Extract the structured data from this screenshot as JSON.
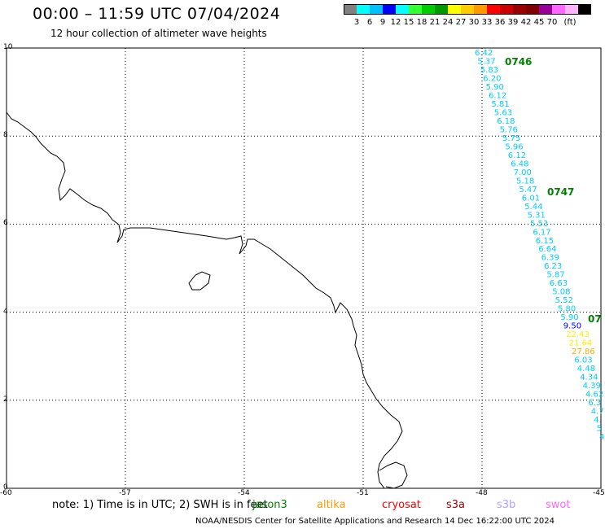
{
  "header": {
    "title": "00:00 – 11:59 UTC 07/04/2024",
    "subtitle": "12 hour collection of altimeter wave heights"
  },
  "legend": {
    "colors": [
      "#808080",
      "#00ffff",
      "#00bfff",
      "#0000ff",
      "#00ffff",
      "#33ff33",
      "#00cc00",
      "#009900",
      "#ffff00",
      "#ffcc00",
      "#ff9900",
      "#ff0000",
      "#cc0000",
      "#990000",
      "#800000",
      "#990099",
      "#ff66ff",
      "#ffb3ff",
      "#000000"
    ],
    "labels": [
      "3",
      "6",
      "9",
      "12",
      "15",
      "18",
      "21",
      "24",
      "27",
      "30",
      "33",
      "36",
      "39",
      "42",
      "45",
      "70",
      "(ft)"
    ]
  },
  "map": {
    "lon_range": [
      -60,
      -45
    ],
    "lat_range": [
      0,
      10
    ],
    "x_ticks": [
      "-60",
      "-57",
      "-54",
      "-51",
      "-48",
      "-45"
    ],
    "y_ticks": [
      "0",
      "2",
      "4",
      "6",
      "8",
      "10"
    ],
    "grid": true
  },
  "pass_labels": [
    {
      "text": "0746",
      "color": "#008000"
    },
    {
      "text": "0747",
      "color": "#008000"
    },
    {
      "text": "07",
      "color": "#008000"
    }
  ],
  "wave_heights": [
    {
      "v": "6.42",
      "c": "#00ccff"
    },
    {
      "v": "5.37",
      "c": "#00ccff"
    },
    {
      "v": "5.83",
      "c": "#00ccff"
    },
    {
      "v": "6.20",
      "c": "#00ccff"
    },
    {
      "v": "5.90",
      "c": "#00ccff"
    },
    {
      "v": "6.12",
      "c": "#00ccff"
    },
    {
      "v": "5.81",
      "c": "#00ccff"
    },
    {
      "v": "5.63",
      "c": "#00ccff"
    },
    {
      "v": "6.18",
      "c": "#00ccff"
    },
    {
      "v": "5.76",
      "c": "#00ccff"
    },
    {
      "v": "5.75",
      "c": "#00ccff"
    },
    {
      "v": "5.96",
      "c": "#00ccff"
    },
    {
      "v": "6.12",
      "c": "#00ccff"
    },
    {
      "v": "6.48",
      "c": "#00ccff"
    },
    {
      "v": "7.00",
      "c": "#00ccff"
    },
    {
      "v": "5.18",
      "c": "#00ccff"
    },
    {
      "v": "5.47",
      "c": "#00ccff"
    },
    {
      "v": "6.01",
      "c": "#00ccff"
    },
    {
      "v": "5.44",
      "c": "#00ccff"
    },
    {
      "v": "5.31",
      "c": "#00ccff"
    },
    {
      "v": "5.53",
      "c": "#00ccff"
    },
    {
      "v": "6.17",
      "c": "#00ccff"
    },
    {
      "v": "6.15",
      "c": "#00ccff"
    },
    {
      "v": "6.64",
      "c": "#00ccff"
    },
    {
      "v": "6.39",
      "c": "#00ccff"
    },
    {
      "v": "6.23",
      "c": "#00ccff"
    },
    {
      "v": "5.87",
      "c": "#00ccff"
    },
    {
      "v": "6.63",
      "c": "#00ccff"
    },
    {
      "v": "5.08",
      "c": "#00ccff"
    },
    {
      "v": "5.52",
      "c": "#00ccff"
    },
    {
      "v": "5.80",
      "c": "#00ccff"
    },
    {
      "v": "5.90",
      "c": "#00ccff"
    },
    {
      "v": "9.50",
      "c": "#0000ff"
    },
    {
      "v": "22.43",
      "c": "#ffee00"
    },
    {
      "v": "21.64",
      "c": "#ffee00"
    },
    {
      "v": "27.86",
      "c": "#ffaa00"
    },
    {
      "v": "6.03",
      "c": "#00ccff"
    },
    {
      "v": "4.48",
      "c": "#00ccff"
    },
    {
      "v": "4.34",
      "c": "#00ccff"
    },
    {
      "v": "4.39",
      "c": "#00ccff"
    },
    {
      "v": "4.62",
      "c": "#00ccff"
    },
    {
      "v": "6.3",
      "c": "#00ccff"
    },
    {
      "v": "4.7",
      "c": "#00ccff"
    },
    {
      "v": "4.",
      "c": "#00ccff"
    },
    {
      "v": "5",
      "c": "#00ccff"
    },
    {
      "v": "4",
      "c": "#00ccff"
    }
  ],
  "footer": {
    "note": "note: 1) Time is in UTC; 2) SWH is in feet",
    "satellites": [
      {
        "name": "jason3",
        "color": "#008000"
      },
      {
        "name": "altika",
        "color": "#ff9900"
      },
      {
        "name": "cryosat",
        "color": "#ff0000"
      },
      {
        "name": "s3a",
        "color": "#990000"
      },
      {
        "name": "s3b",
        "color": "#b3a0ff"
      },
      {
        "name": "swot",
        "color": "#ff66ff"
      }
    ],
    "credit": "NOAA/NESDIS Center for Satellite Applications and Research    14 Dec 16:22:00 UTC 2024"
  }
}
